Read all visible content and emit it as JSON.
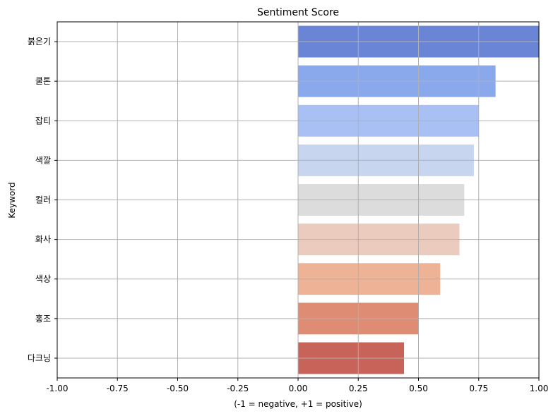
{
  "chart_data": {
    "type": "bar",
    "orientation": "horizontal",
    "title": "Sentiment Score",
    "xlabel": "(-1 = negative, +1 = positive)",
    "ylabel": "Keyword",
    "xlim": [
      -1.0,
      1.0
    ],
    "xticks": [
      "-1.00",
      "-0.75",
      "-0.50",
      "-0.25",
      "0.00",
      "0.25",
      "0.50",
      "0.75",
      "1.00"
    ],
    "grid": true,
    "categories": [
      "붉은기",
      "쿨톤",
      "잡티",
      "색깔",
      "컬러",
      "화사",
      "색상",
      "홍조",
      "다크닝"
    ],
    "values": [
      1.0,
      0.82,
      0.75,
      0.73,
      0.69,
      0.67,
      0.59,
      0.5,
      0.44
    ],
    "colors": [
      "#6a84d6",
      "#8aa8ec",
      "#a9c0f5",
      "#c7d5ef",
      "#dcdcdc",
      "#ebcbbd",
      "#eeb297",
      "#de8c74",
      "#c8635a"
    ]
  }
}
